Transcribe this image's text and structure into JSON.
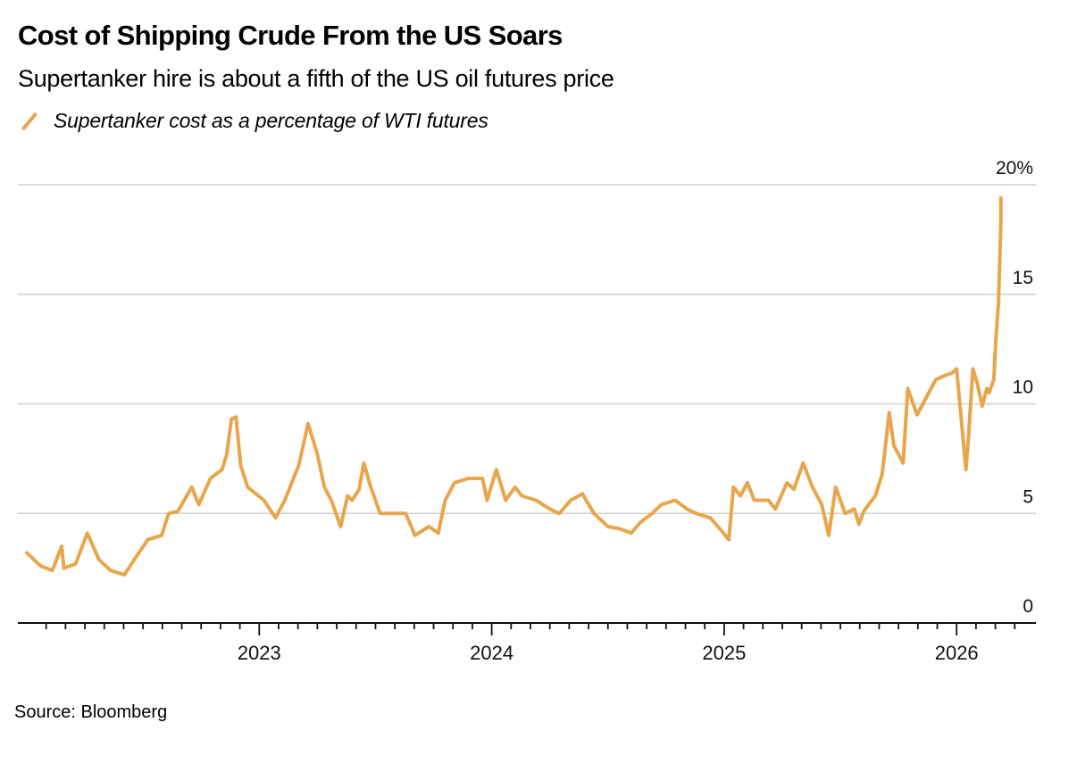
{
  "header": {
    "title": "Cost of Shipping Crude From the US Soars",
    "subtitle": "Supertanker hire is about a fifth of the US oil futures price"
  },
  "legend": {
    "label": "Supertanker cost as a percentage of WTI futures",
    "color": "#E8A64C"
  },
  "footer": {
    "source": "Source: Bloomberg"
  },
  "chart_data": {
    "type": "line",
    "title": "Cost of Shipping Crude From the US Soars",
    "subtitle": "Supertanker hire is about a fifth of the US oil futures price",
    "xlabel": "",
    "ylabel": "",
    "ylim": [
      0,
      20
    ],
    "xlim": [
      2021.99,
      2026.5
    ],
    "grid": true,
    "legend_position": "top-left",
    "y_ticks": [
      {
        "value": 0,
        "label": "0"
      },
      {
        "value": 5,
        "label": "5"
      },
      {
        "value": 10,
        "label": "10"
      },
      {
        "value": 15,
        "label": "15"
      },
      {
        "value": 20,
        "label": "20%"
      }
    ],
    "x_ticks": [
      {
        "value": 2023,
        "label": "2023"
      },
      {
        "value": 2024,
        "label": "2024"
      },
      {
        "value": 2025,
        "label": "2025"
      },
      {
        "value": 2026,
        "label": "2026"
      }
    ],
    "series": [
      {
        "name": "Supertanker cost as a percentage of WTI futures",
        "color": "#E8A64C",
        "x": [
          2022.0,
          2022.06,
          2022.11,
          2022.15,
          2022.16,
          2022.21,
          2022.26,
          2022.31,
          2022.36,
          2022.42,
          2022.46,
          2022.52,
          2022.58,
          2022.61,
          2022.65,
          2022.71,
          2022.74,
          2022.79,
          2022.84,
          2022.86,
          2022.88,
          2022.9,
          2022.92,
          2022.95,
          2023.02,
          2023.07,
          2023.11,
          2023.17,
          2023.21,
          2023.25,
          2023.28,
          2023.31,
          2023.35,
          2023.38,
          2023.4,
          2023.43,
          2023.45,
          2023.48,
          2023.52,
          2023.58,
          2023.63,
          2023.67,
          2023.73,
          2023.77,
          2023.8,
          2023.84,
          2023.9,
          2023.96,
          2023.98,
          2024.02,
          2024.06,
          2024.1,
          2024.13,
          2024.19,
          2024.25,
          2024.29,
          2024.34,
          2024.39,
          2024.44,
          2024.5,
          2024.55,
          2024.6,
          2024.64,
          2024.69,
          2024.73,
          2024.79,
          2024.84,
          2024.88,
          2024.94,
          2024.99,
          2025.02,
          2025.04,
          2025.07,
          2025.1,
          2025.13,
          2025.19,
          2025.22,
          2025.27,
          2025.3,
          2025.34,
          2025.38,
          2025.42,
          2025.45,
          2025.48,
          2025.52,
          2025.56,
          2025.58,
          2025.6,
          2025.65,
          2025.68,
          2025.71,
          2025.73,
          2025.77,
          2025.79,
          2025.83,
          2025.91,
          2025.95,
          2025.98,
          2026.0,
          2026.02,
          2026.04,
          2026.05,
          2026.07,
          2026.09,
          2026.11,
          2026.13,
          2026.14,
          2026.16,
          2026.17,
          2026.18,
          2026.19,
          2026.19
        ],
        "values": [
          3.2,
          2.6,
          2.4,
          3.5,
          2.5,
          2.7,
          4.1,
          2.9,
          2.4,
          2.2,
          2.85,
          3.8,
          4.0,
          5.0,
          5.1,
          6.2,
          5.4,
          6.6,
          7.0,
          7.7,
          9.3,
          9.4,
          7.2,
          6.2,
          5.6,
          4.8,
          5.6,
          7.2,
          9.1,
          7.7,
          6.2,
          5.6,
          4.4,
          5.8,
          5.6,
          6.1,
          7.3,
          6.2,
          5.0,
          5.0,
          5.0,
          4.0,
          4.4,
          4.1,
          5.6,
          6.4,
          6.6,
          6.6,
          5.6,
          7.0,
          5.6,
          6.2,
          5.8,
          5.6,
          5.2,
          5.0,
          5.6,
          5.9,
          5.0,
          4.4,
          4.3,
          4.1,
          4.6,
          5.0,
          5.4,
          5.6,
          5.2,
          5.0,
          4.8,
          4.2,
          3.8,
          6.2,
          5.8,
          6.4,
          5.6,
          5.6,
          5.2,
          6.4,
          6.1,
          7.3,
          6.2,
          5.4,
          4.0,
          6.2,
          5.0,
          5.2,
          4.5,
          5.1,
          5.8,
          6.8,
          9.6,
          8.1,
          7.3,
          10.7,
          9.5,
          11.1,
          11.3,
          11.4,
          11.6,
          9.3,
          7.0,
          8.3,
          11.6,
          10.9,
          9.9,
          10.7,
          10.5,
          11.1,
          13.2,
          14.6,
          18.2,
          19.4
        ]
      }
    ]
  }
}
